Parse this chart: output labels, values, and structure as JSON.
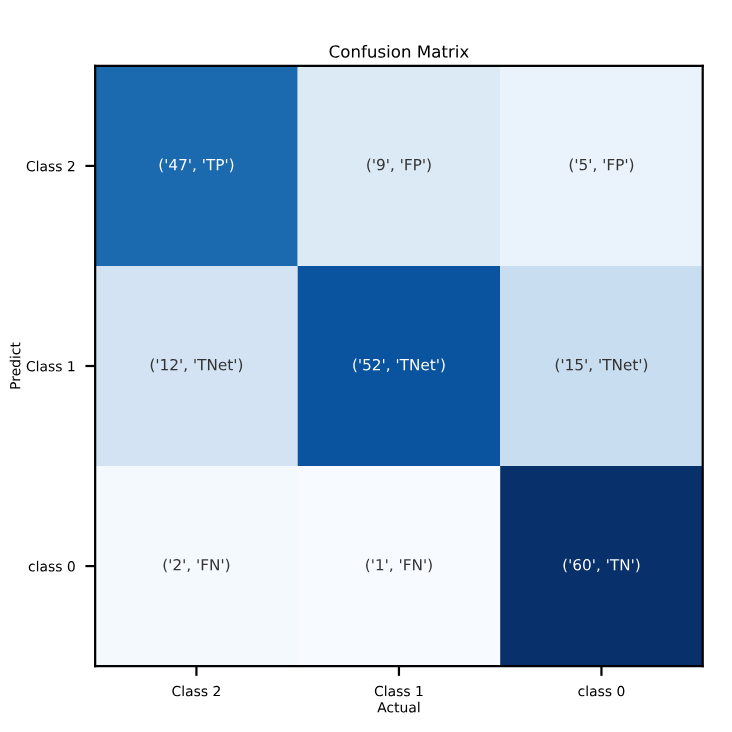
{
  "chart_data": {
    "type": "heatmap",
    "title": "Confusion Matrix",
    "xlabel": "Actual",
    "ylabel": "Predict",
    "categories": [
      "Class 2",
      "Class 1",
      "class 0"
    ],
    "y_categories": [
      "Class 2",
      "Class 1",
      "class 0"
    ],
    "cells": [
      [
        47,
        9,
        5
      ],
      [
        12,
        52,
        15
      ],
      [
        2,
        1,
        60
      ]
    ],
    "cell_labels": [
      [
        "('47', 'TP')",
        "('9', 'FP')",
        "('5', 'FP')"
      ],
      [
        "('12', 'TNet')",
        "('52', 'TNet')",
        "('15', 'TNet')"
      ],
      [
        "('2', 'FN')",
        "('1', 'FN')",
        "('60', 'TN')"
      ]
    ]
  }
}
